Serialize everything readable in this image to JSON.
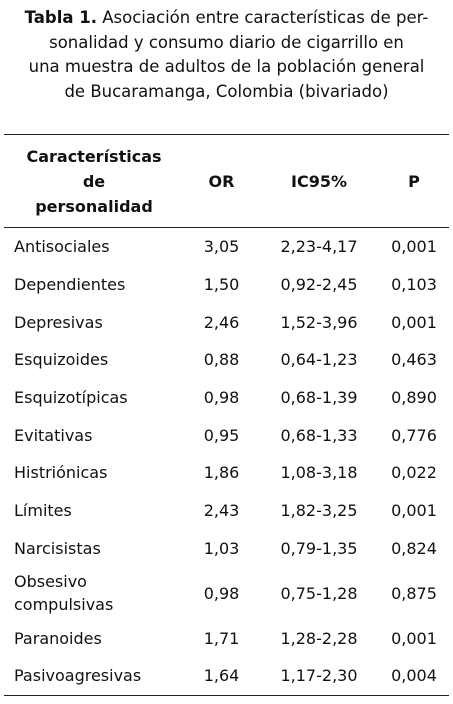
{
  "caption": {
    "label": "Tabla 1.",
    "lines": [
      " Asociación entre características de per-",
      "sonalidad y consumo diario de cigarrillo en",
      "una muestra de adultos de la población general",
      "de Bucaramanga, Colombia (bivariado)"
    ]
  },
  "table": {
    "headers": {
      "trait_lines": [
        "Características",
        "de",
        "personalidad"
      ],
      "or": "OR",
      "ci": "IC95%",
      "p": "P"
    },
    "rows": [
      {
        "trait": [
          "Antisociales"
        ],
        "or": "3,05",
        "ci": "2,23-4,17",
        "p": "0,001"
      },
      {
        "trait": [
          "Dependientes"
        ],
        "or": "1,50",
        "ci": "0,92-2,45",
        "p": "0,103"
      },
      {
        "trait": [
          "Depresivas"
        ],
        "or": "2,46",
        "ci": "1,52-3,96",
        "p": "0,001"
      },
      {
        "trait": [
          "Esquizoides"
        ],
        "or": "0,88",
        "ci": "0,64-1,23",
        "p": "0,463"
      },
      {
        "trait": [
          "Esquizotípicas"
        ],
        "or": "0,98",
        "ci": "0,68-1,39",
        "p": "0,890"
      },
      {
        "trait": [
          "Evitativas"
        ],
        "or": "0,95",
        "ci": "0,68-1,33",
        "p": "0,776"
      },
      {
        "trait": [
          "Histriónicas"
        ],
        "or": "1,86",
        "ci": "1,08-3,18",
        "p": "0,022"
      },
      {
        "trait": [
          "Límites"
        ],
        "or": "2,43",
        "ci": "1,82-3,25",
        "p": "0,001"
      },
      {
        "trait": [
          "Narcisistas"
        ],
        "or": "1,03",
        "ci": "0,79-1,35",
        "p": "0,824"
      },
      {
        "trait": [
          "Obsesivo",
          "compulsivas"
        ],
        "or": "0,98",
        "ci": "0,75-1,28",
        "p": "0,875"
      },
      {
        "trait": [
          "Paranoides"
        ],
        "or": "1,71",
        "ci": "1,28-2,28",
        "p": "0,001"
      },
      {
        "trait": [
          "Pasivoagresivas"
        ],
        "or": "1,64",
        "ci": "1,17-2,30",
        "p": "0,004"
      }
    ]
  }
}
